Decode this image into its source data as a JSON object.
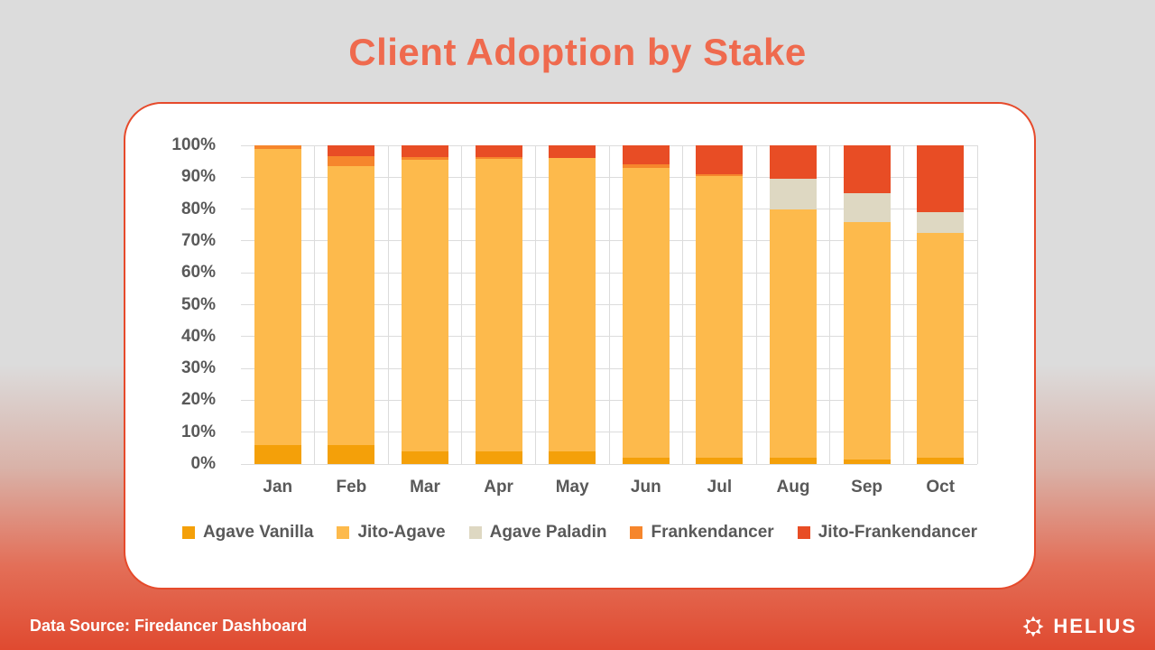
{
  "title": "Client Adoption by Stake",
  "footer": {
    "source": "Data Source: Firedancer Dashboard",
    "brand": "HELIUS"
  },
  "theme": {
    "bg_top": "#dcdcdc",
    "bg_pink": "#d9b2a8",
    "bg_coral": "#e36f58",
    "bg_bottom": "#e04a30",
    "title_color": "#ef6a4e",
    "card_border": "#e64a2b",
    "text_gray": "#595959",
    "grid_color": "#dcdcdc",
    "footer_text": "#ffffff"
  },
  "chart_data": {
    "type": "bar",
    "stacked": true,
    "unit": "percent",
    "title": "Client Adoption by Stake",
    "xlabel": "",
    "ylabel": "",
    "ylim": [
      0,
      100
    ],
    "grid": true,
    "legend_position": "bottom",
    "categories": [
      "Jan",
      "Feb",
      "Mar",
      "Apr",
      "May",
      "Jun",
      "Jul",
      "Aug",
      "Sep",
      "Oct"
    ],
    "yticks": [
      "0%",
      "10%",
      "20%",
      "30%",
      "40%",
      "50%",
      "60%",
      "70%",
      "80%",
      "90%",
      "100%"
    ],
    "series": [
      {
        "name": "Agave Vanilla",
        "color": "#f4a009",
        "values": [
          6,
          6,
          4,
          4,
          4,
          2,
          2,
          2,
          1.5,
          2
        ]
      },
      {
        "name": "Jito-Agave",
        "color": "#fdba4c",
        "values": [
          93,
          87.5,
          91.5,
          91.7,
          92,
          91,
          88.5,
          78,
          74.5,
          70.5
        ]
      },
      {
        "name": "Agave Paladin",
        "color": "#ded8c2",
        "values": [
          0,
          0,
          0,
          0,
          0,
          0,
          0,
          9.5,
          9,
          6.5
        ]
      },
      {
        "name": "Frankendancer",
        "color": "#f6862c",
        "values": [
          1,
          3,
          0.7,
          0.7,
          0,
          1,
          0.5,
          0,
          0,
          0
        ]
      },
      {
        "name": "Jito-Frankendancer",
        "color": "#e84d25",
        "values": [
          0,
          3.5,
          3.8,
          3.6,
          4,
          6,
          9,
          10.5,
          15,
          21
        ]
      }
    ]
  }
}
